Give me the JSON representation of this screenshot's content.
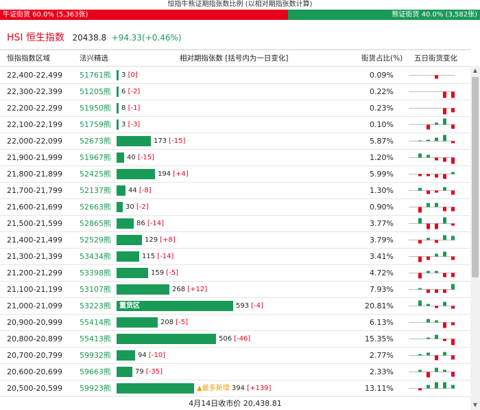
{
  "title": "恒指牛熊证期指张数比例 (以相对期指张数计算)",
  "ratio": {
    "bull_label": "牛证街货 60.0% (5,363张)",
    "bear_label": "熊证街货 40.0% (3,582张)",
    "bull_fraction": 0.6,
    "bull_color": "#e8001c",
    "bear_color": "#1a9a57"
  },
  "index": {
    "name": "HSI 恒生指数",
    "value": "20438.8",
    "change": "+94.33(+0.46%)"
  },
  "header": {
    "range": "恒指指数区域",
    "code": "法兴精选",
    "contracts": "相对期指张数 [括号内为一日变化]",
    "pct": "街货占比(%)",
    "trend": "五日街货变化"
  },
  "rows": [
    {
      "range": "22,400-22,499",
      "code": "51761熊",
      "contracts": 3,
      "change": "[0]",
      "pct": "0.09%",
      "spark": [
        0,
        0,
        -0.5,
        0,
        0
      ]
    },
    {
      "range": "22,300-22,399",
      "code": "51205熊",
      "contracts": 6,
      "change": "[-2]",
      "pct": "0.22%",
      "spark": [
        0,
        0,
        0,
        -0.9,
        -0.9
      ]
    },
    {
      "range": "22,200-22,299",
      "code": "51950熊",
      "contracts": 8,
      "change": "[-1]",
      "pct": "0.23%",
      "spark": [
        0,
        0,
        0,
        -0.9,
        -0.6
      ]
    },
    {
      "range": "22,100-22,199",
      "code": "51759熊",
      "contracts": 3,
      "change": "[-3]",
      "pct": "0.10%",
      "spark": [
        0,
        -0.7,
        0.3,
        0.9,
        -0.6
      ]
    },
    {
      "range": "22,000-22,099",
      "code": "52673熊",
      "contracts": 173,
      "change": "[-15]",
      "pct": "5.87%",
      "spark": [
        0.1,
        0.2,
        0.5,
        0.9,
        -0.3
      ]
    },
    {
      "range": "21,900-21,999",
      "code": "51967熊",
      "contracts": 40,
      "change": "[-15]",
      "pct": "1.20%",
      "spark": [
        0.6,
        0.4,
        -0.4,
        -0.6,
        -0.9
      ]
    },
    {
      "range": "21,800-21,899",
      "code": "52425熊",
      "contracts": 194,
      "change": "[+4]",
      "pct": "5.99%",
      "spark": [
        -0.3,
        -0.3,
        -0.5,
        -0.7,
        0.3
      ]
    },
    {
      "range": "21,700-21,799",
      "code": "52137熊",
      "contracts": 44,
      "change": "[-8]",
      "pct": "1.30%",
      "spark": [
        0.4,
        -0.5,
        -0.3,
        0.5,
        -0.6
      ]
    },
    {
      "range": "21,600-21,699",
      "code": "52663熊",
      "contracts": 30,
      "change": "[-2]",
      "pct": "0.90%",
      "spark": [
        -0.8,
        0.6,
        0.6,
        -0.6,
        -0.6
      ]
    },
    {
      "range": "21,500-21,599",
      "code": "52865熊",
      "contracts": 86,
      "change": "[-14]",
      "pct": "3.77%",
      "spark": [
        0.8,
        -0.8,
        -0.8,
        0.9,
        -0.3
      ]
    },
    {
      "range": "21,400-21,499",
      "code": "52529熊",
      "contracts": 129,
      "change": "[+8]",
      "pct": "3.79%",
      "spark": [
        -0.5,
        0.3,
        -0.4,
        0.7,
        0.6
      ]
    },
    {
      "range": "21,300-21,399",
      "code": "53434熊",
      "contracts": 115,
      "change": "[-14]",
      "pct": "3.41%",
      "spark": [
        -0.8,
        -0.5,
        0.4,
        0.7,
        -0.5
      ]
    },
    {
      "range": "21,200-21,299",
      "code": "53398熊",
      "contracts": 159,
      "change": "[-5]",
      "pct": "4.72%",
      "spark": [
        -0.8,
        0.3,
        0.3,
        -0.6,
        -0.6
      ]
    },
    {
      "range": "21,100-21,199",
      "code": "53107熊",
      "contracts": 268,
      "change": "[+12]",
      "pct": "7.93%",
      "spark": [
        0.2,
        -0.5,
        -0.5,
        -0.5,
        0.8
      ]
    },
    {
      "range": "21,000-21,099",
      "code": "53223熊",
      "contracts": 593,
      "change": "[-4]",
      "pct": "20.81%",
      "spark": [
        0.8,
        0.3,
        -0.3,
        0.6,
        -0.4
      ],
      "tag": "重货区"
    },
    {
      "range": "20,900-20,999",
      "code": "55414熊",
      "contracts": 208,
      "change": "[-5]",
      "pct": "6.13%",
      "spark": [
        0,
        0.5,
        0.3,
        -0.8,
        -0.4
      ]
    },
    {
      "range": "20,800-20,899",
      "code": "55413熊",
      "contracts": 506,
      "change": "[-46]",
      "pct": "15.35%",
      "spark": [
        0,
        0.2,
        0.6,
        -0.3,
        -0.9
      ]
    },
    {
      "range": "20,700-20,799",
      "code": "59932熊",
      "contracts": 94,
      "change": "[-10]",
      "pct": "2.77%",
      "spark": [
        0.2,
        0.4,
        -0.7,
        0.5,
        -0.6
      ]
    },
    {
      "range": "20,600-20,699",
      "code": "59663熊",
      "contracts": 79,
      "change": "[-35]",
      "pct": "2.33%",
      "spark": [
        0.3,
        -0.8,
        0.6,
        0.3,
        -0.7
      ]
    },
    {
      "range": "20,500-20,599",
      "code": "59923熊",
      "contracts": 394,
      "change": "[+139]",
      "pct": "13.11%",
      "spark": [
        -0.3,
        0.5,
        0.9,
        0.9,
        0.5
      ],
      "new_label": "▲最多新增"
    }
  ],
  "footer": "4月14日收市价 20,438.81",
  "colors": {
    "up": "#1a9a57",
    "down": "#e8001c"
  }
}
